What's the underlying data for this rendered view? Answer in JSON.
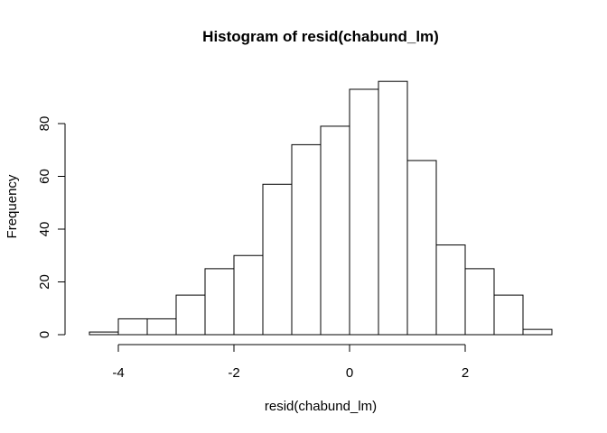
{
  "chart_data": {
    "type": "bar",
    "title": "Histogram of resid(chabund_lm)",
    "xlabel": "resid(chabund_lm)",
    "ylabel": "Frequency",
    "bins": [
      {
        "x0": -4.5,
        "x1": -4.0,
        "count": 1
      },
      {
        "x0": -4.0,
        "x1": -3.5,
        "count": 6
      },
      {
        "x0": -3.5,
        "x1": -3.0,
        "count": 6
      },
      {
        "x0": -3.0,
        "x1": -2.5,
        "count": 15
      },
      {
        "x0": -2.5,
        "x1": -2.0,
        "count": 25
      },
      {
        "x0": -2.0,
        "x1": -1.5,
        "count": 30
      },
      {
        "x0": -1.5,
        "x1": -1.0,
        "count": 57
      },
      {
        "x0": -1.0,
        "x1": -0.5,
        "count": 72
      },
      {
        "x0": -0.5,
        "x1": 0.0,
        "count": 79
      },
      {
        "x0": 0.0,
        "x1": 0.5,
        "count": 93
      },
      {
        "x0": 0.5,
        "x1": 1.0,
        "count": 96
      },
      {
        "x0": 1.0,
        "x1": 1.5,
        "count": 66
      },
      {
        "x0": 1.5,
        "x1": 2.0,
        "count": 34
      },
      {
        "x0": 2.0,
        "x1": 2.5,
        "count": 25
      },
      {
        "x0": 2.5,
        "x1": 3.0,
        "count": 15
      },
      {
        "x0": 3.0,
        "x1": 3.5,
        "count": 2
      }
    ],
    "x_ticks": [
      -4,
      -2,
      0,
      2
    ],
    "x_tick_labels": [
      "-4",
      "-2",
      "0",
      "2"
    ],
    "y_ticks": [
      0,
      20,
      40,
      60,
      80
    ],
    "y_tick_labels": [
      "0",
      "20",
      "40",
      "60",
      "80"
    ],
    "xlim": [
      -4.5,
      3.5
    ],
    "ylim": [
      0,
      96
    ],
    "grid": false,
    "colors": {
      "bar_fill": "#ffffff",
      "bar_stroke": "#000000"
    }
  }
}
